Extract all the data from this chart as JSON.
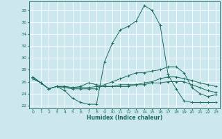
{
  "xlabel": "Humidex (Indice chaleur)",
  "bg_color": "#cce8ee",
  "grid_color": "#ffffff",
  "line_color": "#1a6b5a",
  "xlim": [
    -0.5,
    23.5
  ],
  "ylim": [
    21.5,
    39.5
  ],
  "yticks": [
    22,
    24,
    26,
    28,
    30,
    32,
    34,
    36,
    38
  ],
  "xticks": [
    0,
    1,
    2,
    3,
    4,
    5,
    6,
    7,
    8,
    9,
    10,
    11,
    12,
    13,
    14,
    15,
    16,
    17,
    18,
    19,
    20,
    21,
    22,
    23
  ],
  "series": [
    {
      "x": [
        0,
        1,
        2,
        3,
        4,
        5,
        6,
        7,
        8,
        9,
        10,
        11,
        12,
        13,
        14,
        15,
        16,
        17,
        18,
        19,
        20,
        21,
        22,
        23
      ],
      "y": [
        26.8,
        25.8,
        24.8,
        25.2,
        24.5,
        23.2,
        22.5,
        22.2,
        22.2,
        29.3,
        32.5,
        34.7,
        35.3,
        36.2,
        38.8,
        38.0,
        35.5,
        27.2,
        24.8,
        22.8,
        22.5,
        22.5,
        22.5,
        22.5
      ]
    },
    {
      "x": [
        0,
        1,
        2,
        3,
        4,
        5,
        6,
        7,
        8,
        9,
        10,
        11,
        12,
        13,
        14,
        15,
        16,
        17,
        18,
        19,
        20,
        21,
        22,
        23
      ],
      "y": [
        26.8,
        25.8,
        24.8,
        25.2,
        25.0,
        24.8,
        24.8,
        24.8,
        24.8,
        25.5,
        26.0,
        26.5,
        27.0,
        27.5,
        27.5,
        27.8,
        28.0,
        28.5,
        28.5,
        27.5,
        25.0,
        24.0,
        23.5,
        23.8
      ]
    },
    {
      "x": [
        0,
        1,
        2,
        3,
        4,
        5,
        6,
        7,
        8,
        9,
        10,
        11,
        12,
        13,
        14,
        15,
        16,
        17,
        18,
        19,
        20,
        21,
        22,
        23
      ],
      "y": [
        26.5,
        25.8,
        24.8,
        25.2,
        25.2,
        25.0,
        25.0,
        25.0,
        25.2,
        25.2,
        25.2,
        25.2,
        25.2,
        25.5,
        25.5,
        25.8,
        25.8,
        26.0,
        26.0,
        26.0,
        25.5,
        25.0,
        24.5,
        24.2
      ]
    },
    {
      "x": [
        0,
        1,
        2,
        3,
        4,
        5,
        6,
        7,
        8,
        9,
        10,
        11,
        12,
        13,
        14,
        15,
        16,
        17,
        18,
        19,
        20,
        21,
        22,
        23
      ],
      "y": [
        26.5,
        25.8,
        24.8,
        25.2,
        25.2,
        25.0,
        25.2,
        25.8,
        25.5,
        25.2,
        25.2,
        25.5,
        25.5,
        25.5,
        25.8,
        26.0,
        26.5,
        26.8,
        26.8,
        26.5,
        26.2,
        25.8,
        25.5,
        25.2
      ]
    }
  ]
}
